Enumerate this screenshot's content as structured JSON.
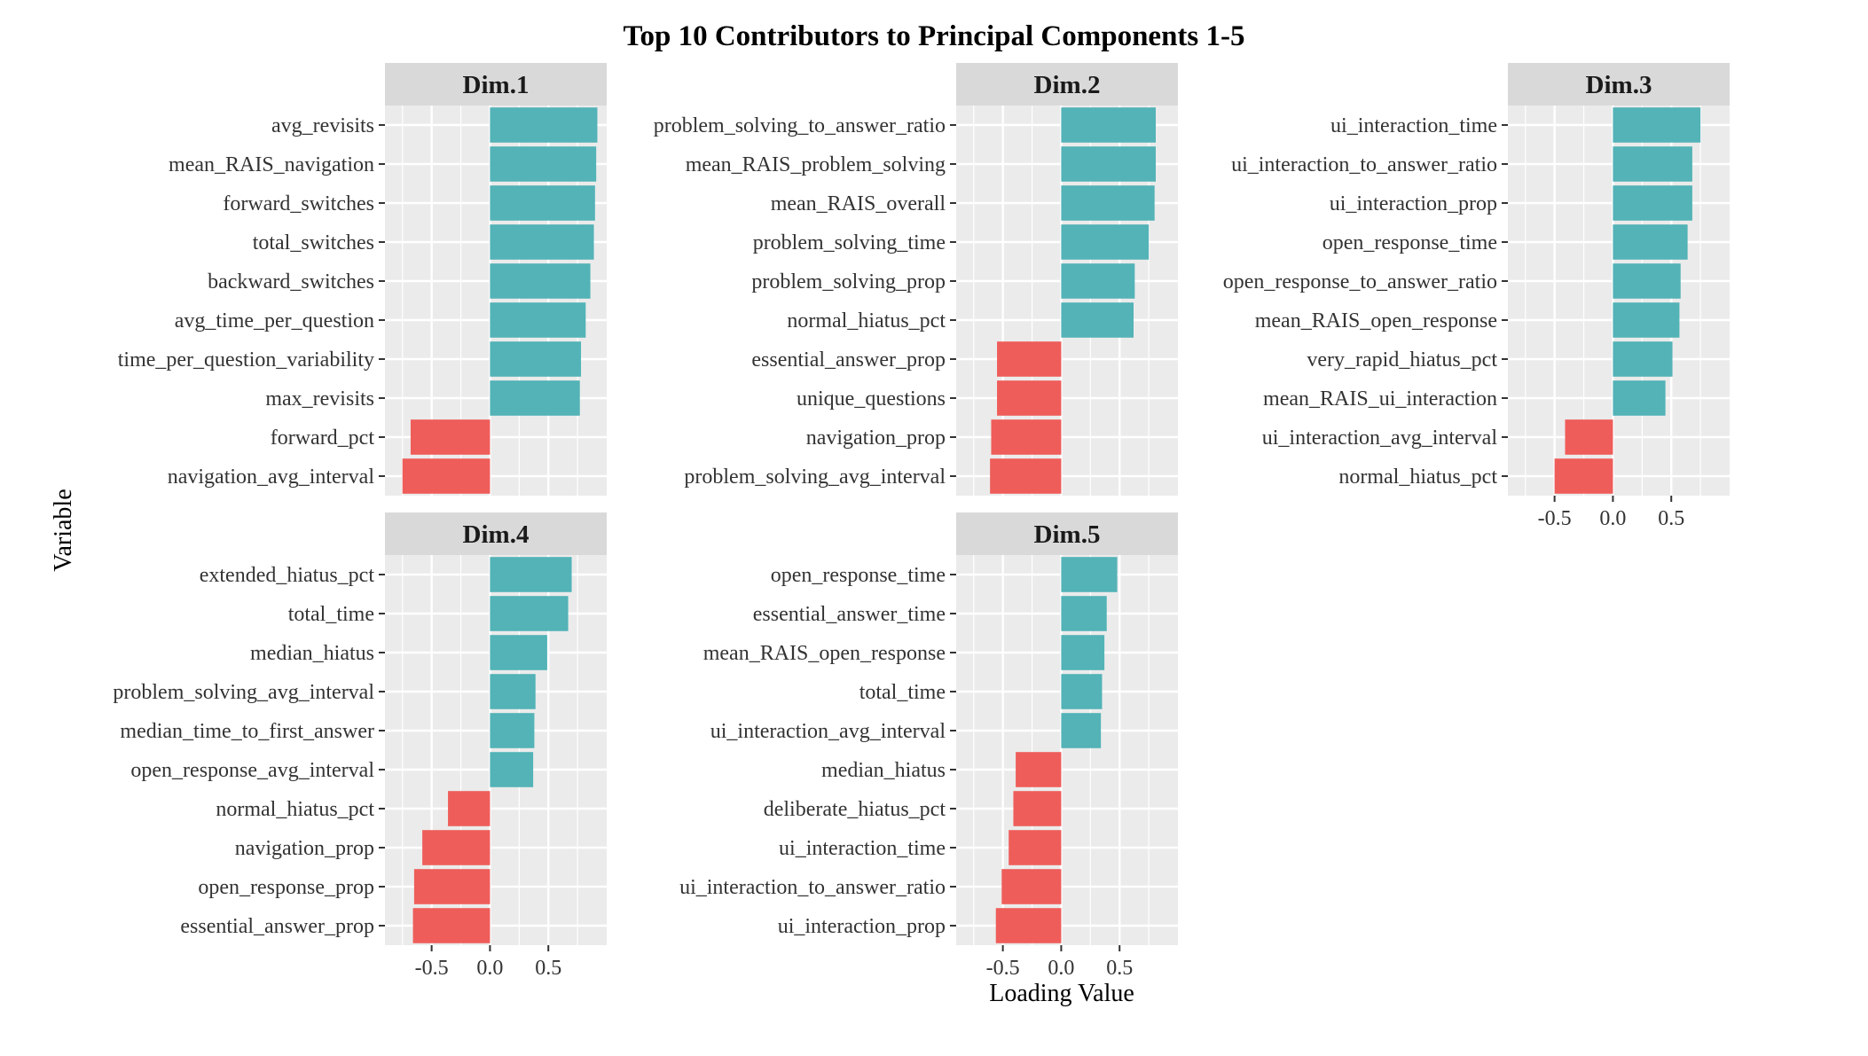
{
  "chart_data": {
    "type": "bar",
    "orientation": "horizontal",
    "title": "Top 10 Contributors to Principal Components 1-5",
    "xlabel": "Loading Value",
    "ylabel": "Variable",
    "xlim": [
      -0.9,
      1.0
    ],
    "xticks": [
      -0.5,
      0.0,
      0.5
    ],
    "xtick_labels": [
      "-0.5",
      "0.0",
      "0.5"
    ],
    "grid": true,
    "legend": "none",
    "colors": {
      "positive": "#53B3B7",
      "negative": "#EE5D5A",
      "panel_bg": "#EBEBEB",
      "strip_bg": "#D9D9D9",
      "grid": "#ffffff"
    },
    "panels": [
      {
        "name": "Dim.1",
        "categories": [
          "avg_revisits",
          "mean_RAIS_navigation",
          "forward_switches",
          "total_switches",
          "backward_switches",
          "avg_time_per_question",
          "time_per_question_variability",
          "max_revisits",
          "forward_pct",
          "navigation_avg_interval"
        ],
        "values": [
          0.92,
          0.91,
          0.9,
          0.89,
          0.86,
          0.82,
          0.78,
          0.77,
          -0.68,
          -0.75
        ]
      },
      {
        "name": "Dim.2",
        "categories": [
          "problem_solving_to_answer_ratio",
          "mean_RAIS_problem_solving",
          "mean_RAIS_overall",
          "problem_solving_time",
          "problem_solving_prop",
          "normal_hiatus_pct",
          "essential_answer_prop",
          "unique_questions",
          "navigation_prop",
          "problem_solving_avg_interval"
        ],
        "values": [
          0.81,
          0.81,
          0.8,
          0.75,
          0.63,
          0.62,
          -0.55,
          -0.55,
          -0.6,
          -0.61
        ]
      },
      {
        "name": "Dim.3",
        "categories": [
          "ui_interaction_time",
          "ui_interaction_to_answer_ratio",
          "ui_interaction_prop",
          "open_response_time",
          "open_response_to_answer_ratio",
          "mean_RAIS_open_response",
          "very_rapid_hiatus_pct",
          "mean_RAIS_ui_interaction",
          "ui_interaction_avg_interval",
          "normal_hiatus_pct"
        ],
        "values": [
          0.75,
          0.68,
          0.68,
          0.64,
          0.58,
          0.57,
          0.51,
          0.45,
          -0.41,
          -0.5
        ]
      },
      {
        "name": "Dim.4",
        "categories": [
          "extended_hiatus_pct",
          "total_time",
          "median_hiatus",
          "problem_solving_avg_interval",
          "median_time_to_first_answer",
          "open_response_avg_interval",
          "normal_hiatus_pct",
          "navigation_prop",
          "open_response_prop",
          "essential_answer_prop"
        ],
        "values": [
          0.7,
          0.67,
          0.49,
          0.39,
          0.38,
          0.37,
          -0.36,
          -0.58,
          -0.65,
          -0.66
        ]
      },
      {
        "name": "Dim.5",
        "categories": [
          "open_response_time",
          "essential_answer_time",
          "mean_RAIS_open_response",
          "total_time",
          "ui_interaction_avg_interval",
          "median_hiatus",
          "deliberate_hiatus_pct",
          "ui_interaction_time",
          "ui_interaction_to_answer_ratio",
          "ui_interaction_prop"
        ],
        "values": [
          0.48,
          0.39,
          0.37,
          0.35,
          0.34,
          -0.39,
          -0.41,
          -0.45,
          -0.51,
          -0.56
        ]
      }
    ]
  }
}
